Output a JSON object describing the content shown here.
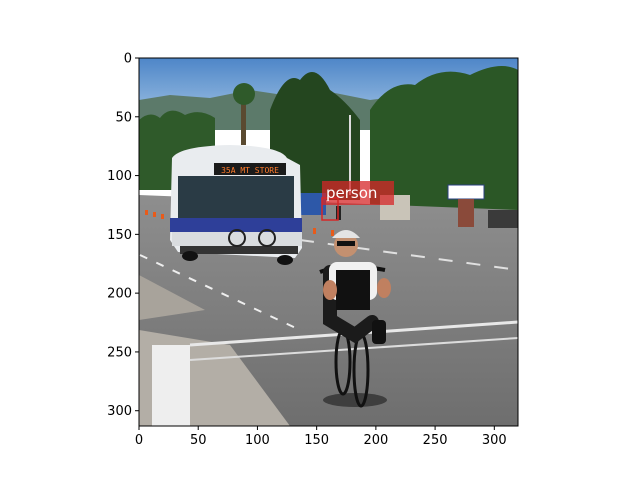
{
  "figure": {
    "xticks": [
      "0",
      "50",
      "100",
      "150",
      "200",
      "250",
      "300"
    ],
    "yticks": [
      "0",
      "50",
      "100",
      "150",
      "200",
      "250",
      "300"
    ],
    "xlim": [
      0,
      320
    ],
    "ylim": [
      0,
      313
    ]
  },
  "photo": {
    "bus_sign": "35A MT STORE"
  },
  "detections": [
    {
      "label": "person",
      "color": "#d62728"
    }
  ]
}
